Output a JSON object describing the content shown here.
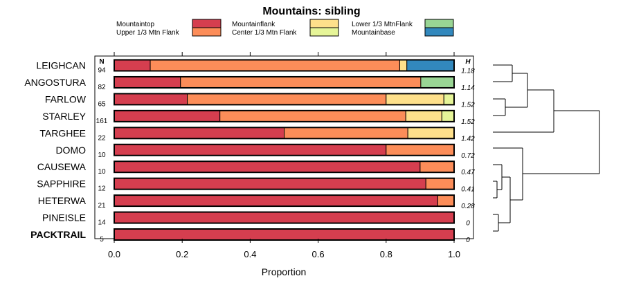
{
  "chart_data": {
    "type": "stacked-bar",
    "title": "Mountains: sibling",
    "xlabel": "Proportion",
    "xlim": [
      0,
      1
    ],
    "xticks": [
      "0.0",
      "0.2",
      "0.4",
      "0.6",
      "0.8",
      "1.0"
    ],
    "n_header": "N",
    "h_header": "H",
    "legend": [
      {
        "name": "Mountaintop",
        "color": "#d53e4f"
      },
      {
        "name": "Upper 1/3 Mtn Flank",
        "color": "#fc8d59"
      },
      {
        "name": "Mountainflank",
        "color": "#fee08b"
      },
      {
        "name": "Center 1/3 Mtn Flank",
        "color": "#e6f598"
      },
      {
        "name": "Lower 1/3 MtnFlank",
        "color": "#99d594"
      },
      {
        "name": "Mountainbase",
        "color": "#3288bd"
      }
    ],
    "rows": [
      {
        "label": "LEIGHCAN",
        "n": "94",
        "h": "1.18",
        "bold": false,
        "segments": [
          {
            "color": "#d53e4f",
            "value": 0.106
          },
          {
            "color": "#fc8d59",
            "value": 0.734
          },
          {
            "color": "#fee08b",
            "value": 0.021
          },
          {
            "color": "#3288bd",
            "value": 0.139
          }
        ]
      },
      {
        "label": "ANGOSTURA",
        "n": "82",
        "h": "1.14",
        "bold": false,
        "segments": [
          {
            "color": "#d53e4f",
            "value": 0.195
          },
          {
            "color": "#fc8d59",
            "value": 0.707
          },
          {
            "color": "#99d594",
            "value": 0.098
          }
        ]
      },
      {
        "label": "FARLOW",
        "n": "65",
        "h": "1.52",
        "bold": false,
        "segments": [
          {
            "color": "#d53e4f",
            "value": 0.215
          },
          {
            "color": "#fc8d59",
            "value": 0.585
          },
          {
            "color": "#fee08b",
            "value": 0.17
          },
          {
            "color": "#e6f598",
            "value": 0.03
          }
        ]
      },
      {
        "label": "STARLEY",
        "n": "161",
        "h": "1.52",
        "bold": false,
        "segments": [
          {
            "color": "#d53e4f",
            "value": 0.311
          },
          {
            "color": "#fc8d59",
            "value": 0.547
          },
          {
            "color": "#fee08b",
            "value": 0.106
          },
          {
            "color": "#e6f598",
            "value": 0.036
          }
        ]
      },
      {
        "label": "TARGHEE",
        "n": "22",
        "h": "1.42",
        "bold": false,
        "segments": [
          {
            "color": "#d53e4f",
            "value": 0.5
          },
          {
            "color": "#fc8d59",
            "value": 0.364
          },
          {
            "color": "#fee08b",
            "value": 0.136
          }
        ]
      },
      {
        "label": "DOMO",
        "n": "10",
        "h": "0.72",
        "bold": false,
        "segments": [
          {
            "color": "#d53e4f",
            "value": 0.8
          },
          {
            "color": "#fc8d59",
            "value": 0.2
          }
        ]
      },
      {
        "label": "CAUSEWA",
        "n": "10",
        "h": "0.47",
        "bold": false,
        "segments": [
          {
            "color": "#d53e4f",
            "value": 0.9
          },
          {
            "color": "#fc8d59",
            "value": 0.1
          }
        ]
      },
      {
        "label": "SAPPHIRE",
        "n": "12",
        "h": "0.41",
        "bold": false,
        "segments": [
          {
            "color": "#d53e4f",
            "value": 0.917
          },
          {
            "color": "#fc8d59",
            "value": 0.083
          }
        ]
      },
      {
        "label": "HETERWA",
        "n": "21",
        "h": "0.28",
        "bold": false,
        "segments": [
          {
            "color": "#d53e4f",
            "value": 0.952
          },
          {
            "color": "#fc8d59",
            "value": 0.048
          }
        ]
      },
      {
        "label": "PINEISLE",
        "n": "14",
        "h": "0",
        "bold": false,
        "segments": [
          {
            "color": "#d53e4f",
            "value": 1.0
          }
        ]
      },
      {
        "label": "PACKTRAIL",
        "n": "5",
        "h": "0",
        "bold": true,
        "segments": [
          {
            "color": "#d53e4f",
            "value": 1.0
          }
        ]
      }
    ]
  }
}
